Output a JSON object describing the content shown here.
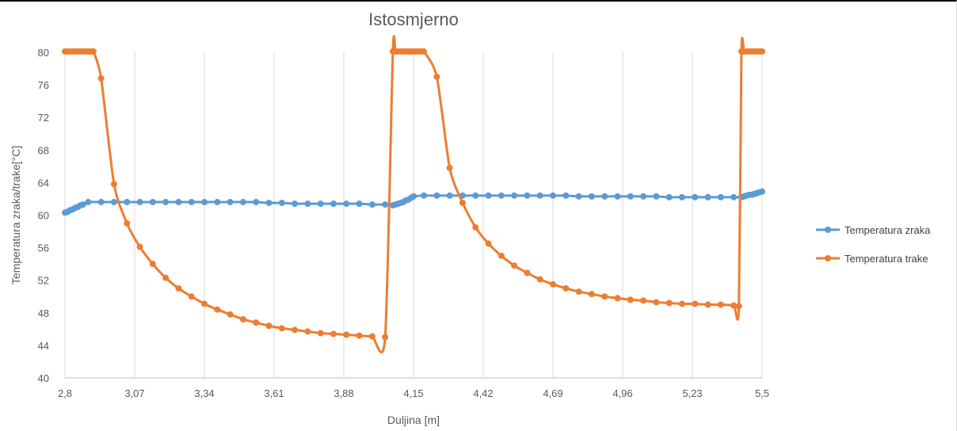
{
  "chart_data": {
    "type": "line",
    "title": "Istosmjerno",
    "xlabel": "Duljina [m]",
    "ylabel": "Temperatura zraka/trake[°C]",
    "xlim": [
      2.8,
      5.5
    ],
    "ylim": [
      40,
      80
    ],
    "x_ticks": [
      "2,8",
      "3,07",
      "3,34",
      "3,61",
      "3,88",
      "4,15",
      "4,42",
      "4,69",
      "4,96",
      "5,23",
      "5,5"
    ],
    "y_ticks": [
      "40",
      "44",
      "48",
      "52",
      "56",
      "60",
      "64",
      "68",
      "72",
      "76",
      "80"
    ],
    "grid": "vertical",
    "legend_position": "right",
    "series": [
      {
        "name": "Temperatura zraka",
        "color": "#5b9bd5",
        "x": [
          2.8,
          2.81,
          2.82,
          2.83,
          2.84,
          2.85,
          2.86,
          2.87,
          2.89,
          2.94,
          2.99,
          3.04,
          3.09,
          3.14,
          3.19,
          3.24,
          3.29,
          3.34,
          3.39,
          3.44,
          3.49,
          3.54,
          3.59,
          3.64,
          3.69,
          3.74,
          3.79,
          3.84,
          3.89,
          3.94,
          3.99,
          4.04,
          4.07,
          4.08,
          4.09,
          4.1,
          4.11,
          4.12,
          4.13,
          4.14,
          4.15,
          4.19,
          4.24,
          4.29,
          4.34,
          4.39,
          4.44,
          4.49,
          4.54,
          4.59,
          4.64,
          4.69,
          4.74,
          4.79,
          4.84,
          4.89,
          4.94,
          4.99,
          5.04,
          5.09,
          5.14,
          5.19,
          5.24,
          5.29,
          5.34,
          5.39,
          5.42,
          5.43,
          5.44,
          5.45,
          5.46,
          5.47,
          5.48,
          5.49,
          5.5
        ],
        "values": [
          60.3,
          60.4,
          60.6,
          60.7,
          60.9,
          61.0,
          61.2,
          61.3,
          61.6,
          61.6,
          61.6,
          61.6,
          61.6,
          61.6,
          61.6,
          61.6,
          61.6,
          61.6,
          61.6,
          61.6,
          61.6,
          61.6,
          61.5,
          61.5,
          61.4,
          61.4,
          61.4,
          61.4,
          61.4,
          61.4,
          61.3,
          61.3,
          61.2,
          61.3,
          61.4,
          61.5,
          61.6,
          61.8,
          61.9,
          62.1,
          62.3,
          62.4,
          62.4,
          62.4,
          62.4,
          62.4,
          62.4,
          62.4,
          62.4,
          62.4,
          62.4,
          62.4,
          62.4,
          62.3,
          62.3,
          62.3,
          62.3,
          62.3,
          62.3,
          62.3,
          62.2,
          62.2,
          62.2,
          62.2,
          62.2,
          62.2,
          62.2,
          62.3,
          62.4,
          62.5,
          62.5,
          62.6,
          62.7,
          62.8,
          62.9
        ]
      },
      {
        "name": "Temperatura trake",
        "color": "#ed7d31",
        "x": [
          2.8,
          2.81,
          2.82,
          2.83,
          2.84,
          2.85,
          2.86,
          2.87,
          2.88,
          2.89,
          2.9,
          2.91,
          2.94,
          2.99,
          3.04,
          3.09,
          3.14,
          3.19,
          3.24,
          3.29,
          3.34,
          3.39,
          3.44,
          3.49,
          3.54,
          3.59,
          3.64,
          3.69,
          3.74,
          3.79,
          3.84,
          3.89,
          3.94,
          3.99,
          4.04,
          4.07,
          4.08,
          4.09,
          4.1,
          4.11,
          4.12,
          4.13,
          4.14,
          4.15,
          4.16,
          4.17,
          4.18,
          4.19,
          4.24,
          4.29,
          4.34,
          4.39,
          4.44,
          4.49,
          4.54,
          4.59,
          4.64,
          4.69,
          4.74,
          4.79,
          4.84,
          4.89,
          4.94,
          4.99,
          5.04,
          5.09,
          5.14,
          5.19,
          5.24,
          5.29,
          5.34,
          5.39,
          5.41,
          5.42,
          5.43,
          5.44,
          5.45,
          5.46,
          5.47,
          5.48,
          5.49,
          5.5
        ],
        "values": [
          80.1,
          80.1,
          80.1,
          80.1,
          80.1,
          80.1,
          80.1,
          80.1,
          80.1,
          80.1,
          80.1,
          80.1,
          76.8,
          63.8,
          59.0,
          56.1,
          54.0,
          52.3,
          51.0,
          50.0,
          49.1,
          48.4,
          47.8,
          47.2,
          46.8,
          46.4,
          46.1,
          45.9,
          45.7,
          45.5,
          45.4,
          45.3,
          45.2,
          45.1,
          45.0,
          80.1,
          80.1,
          80.1,
          80.1,
          80.1,
          80.1,
          80.1,
          80.1,
          80.1,
          80.1,
          80.1,
          80.1,
          80.1,
          77.0,
          65.8,
          61.5,
          58.5,
          56.5,
          55.0,
          53.8,
          52.9,
          52.1,
          51.5,
          51.0,
          50.6,
          50.3,
          50.0,
          49.8,
          49.6,
          49.5,
          49.3,
          49.2,
          49.1,
          49.1,
          49.0,
          49.0,
          48.9,
          48.8,
          80.1,
          80.1,
          80.1,
          80.1,
          80.1,
          80.1,
          80.1,
          80.1,
          80.1
        ]
      }
    ]
  },
  "styles": {
    "grid_color": "#d9d9d9",
    "axis_color": "#bfbfbf",
    "text_color": "#595959"
  }
}
